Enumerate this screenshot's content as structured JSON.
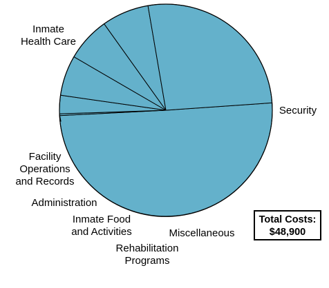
{
  "chart_data": {
    "type": "pie",
    "slices": [
      {
        "label": [
          "Security"
        ],
        "value": 24600
      },
      {
        "label": [
          "Miscellaneous"
        ],
        "value": 130
      },
      {
        "label": [
          "Rehabilitation",
          "Programs"
        ],
        "value": 1370
      },
      {
        "label": [
          "Inmate Food",
          "and Activities"
        ],
        "value": 3000
      },
      {
        "label": [
          "Administration"
        ],
        "value": 3300
      },
      {
        "label": [
          "Facility",
          "Operations",
          "and Records"
        ],
        "value": 3500
      },
      {
        "label": [
          "Inmate",
          "Health Care"
        ],
        "value": 13000
      }
    ],
    "total": {
      "label": "Total Costs:",
      "value": "$48,900"
    },
    "colors": {
      "fill": "#64B1CB",
      "stroke": "#000000"
    }
  }
}
